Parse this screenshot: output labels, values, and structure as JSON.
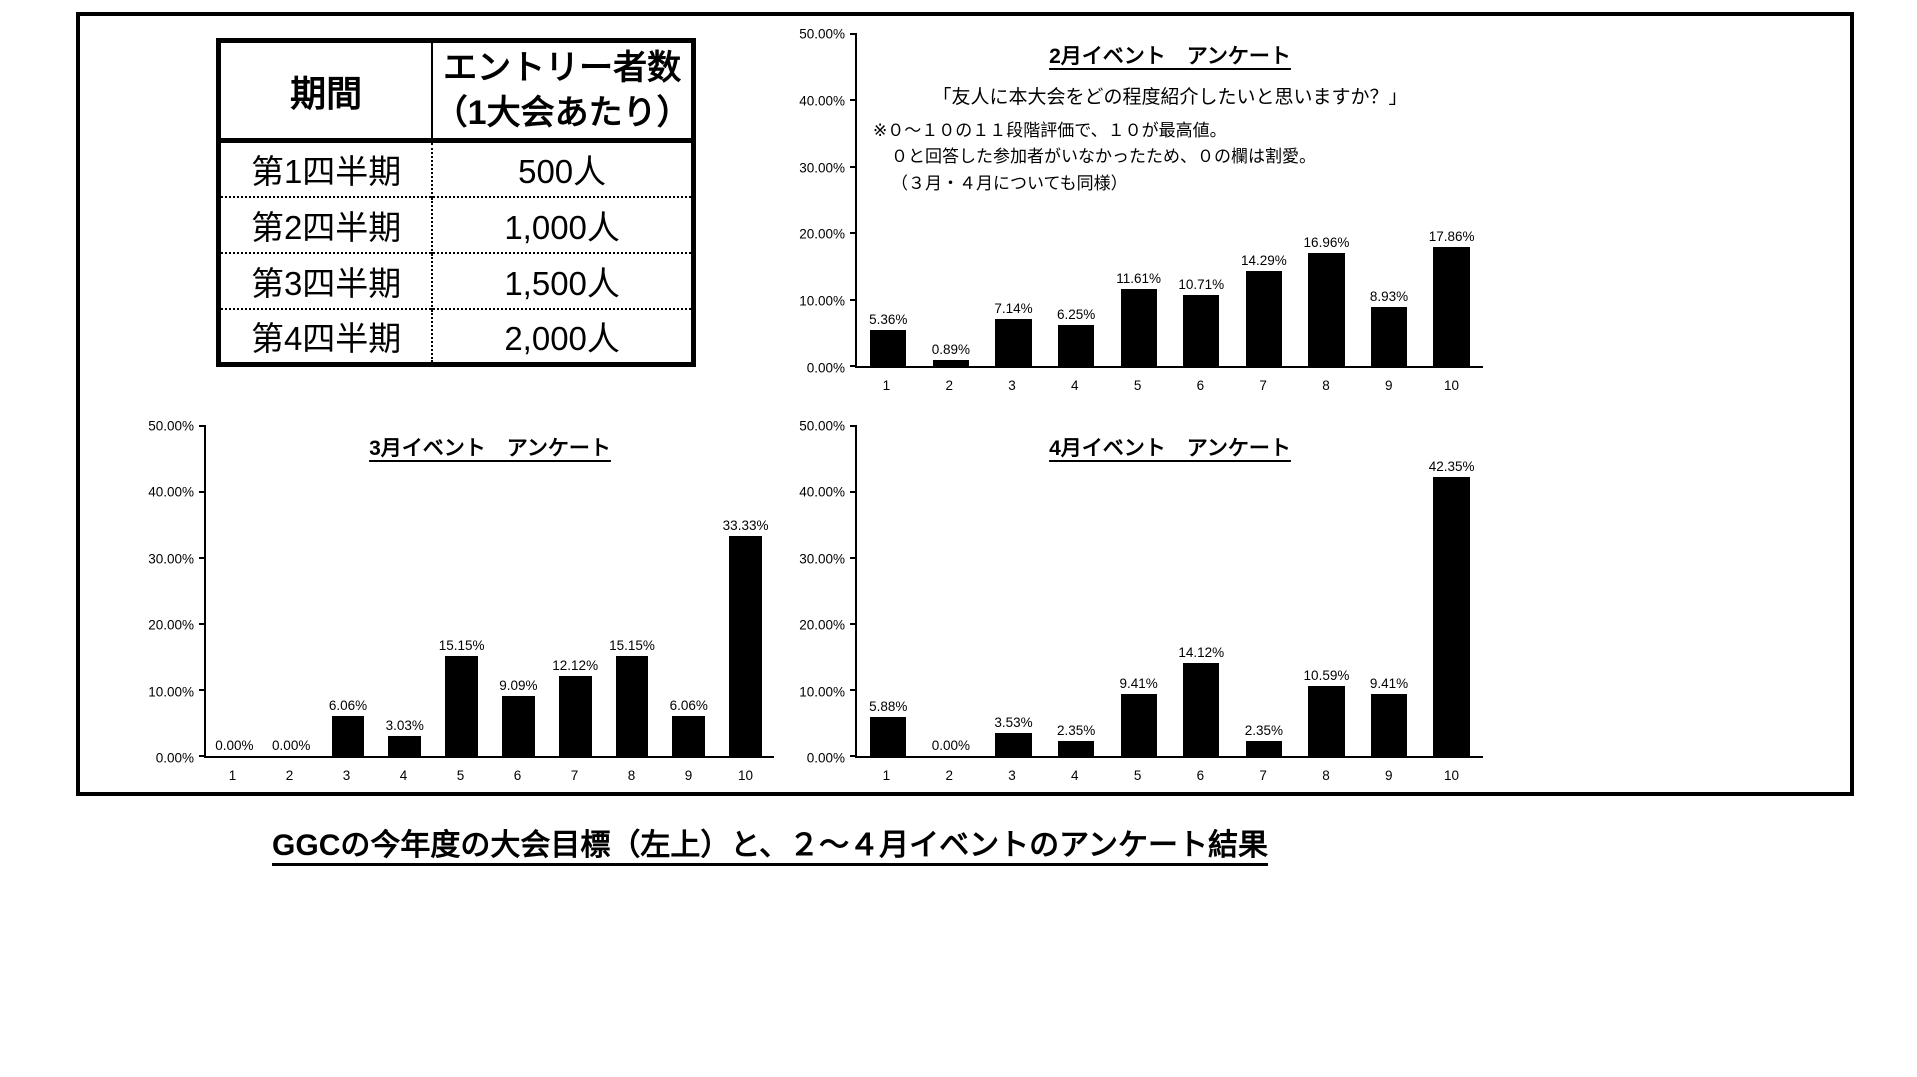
{
  "caption": "GGCの今年度の大会目標（左上）と、２～４月イベントのアンケート結果",
  "table": {
    "headers": [
      "期間",
      "エントリー者数\n（1大会あたり）"
    ],
    "rows": [
      [
        "第1四半期",
        "500人"
      ],
      [
        "第2四半期",
        "1,000人"
      ],
      [
        "第3四半期",
        "1,500人"
      ],
      [
        "第4四半期",
        "2,000人"
      ]
    ]
  },
  "chart_data": [
    {
      "type": "bar",
      "title": "2月イベント　アンケート",
      "question": "「友人に本大会をどの程度紹介したいと思いますか？」",
      "note_lines": [
        "※０～１０の１１段階評価で、１０が最高値。",
        "０と回答した参加者がいなかったため、０の欄は割愛。",
        "（３月・４月についても同様）"
      ],
      "categories": [
        "1",
        "2",
        "3",
        "4",
        "5",
        "6",
        "7",
        "8",
        "9",
        "10"
      ],
      "values": [
        5.36,
        0.89,
        7.14,
        6.25,
        11.61,
        10.71,
        14.29,
        16.96,
        8.93,
        17.86
      ],
      "xlabel": "",
      "ylabel": "",
      "ylim": [
        0,
        50
      ],
      "yticks": [
        "0.00%",
        "10.00%",
        "20.00%",
        "30.00%",
        "40.00%",
        "50.00%"
      ],
      "grid": false,
      "legend": false,
      "bar_color": "#000000"
    },
    {
      "type": "bar",
      "title": "3月イベント　アンケート",
      "categories": [
        "1",
        "2",
        "3",
        "4",
        "5",
        "6",
        "7",
        "8",
        "9",
        "10"
      ],
      "values": [
        0.0,
        0.0,
        6.06,
        3.03,
        15.15,
        9.09,
        12.12,
        15.15,
        6.06,
        33.33
      ],
      "xlabel": "",
      "ylabel": "",
      "ylim": [
        0,
        50
      ],
      "yticks": [
        "0.00%",
        "10.00%",
        "20.00%",
        "30.00%",
        "40.00%",
        "50.00%"
      ],
      "grid": false,
      "legend": false,
      "bar_color": "#000000"
    },
    {
      "type": "bar",
      "title": "4月イベント　アンケート",
      "categories": [
        "1",
        "2",
        "3",
        "4",
        "5",
        "6",
        "7",
        "8",
        "9",
        "10"
      ],
      "values": [
        5.88,
        0.0,
        3.53,
        2.35,
        9.41,
        14.12,
        2.35,
        10.59,
        9.41,
        42.35
      ],
      "xlabel": "",
      "ylabel": "",
      "ylim": [
        0,
        50
      ],
      "yticks": [
        "0.00%",
        "10.00%",
        "20.00%",
        "30.00%",
        "40.00%",
        "50.00%"
      ],
      "grid": false,
      "legend": false,
      "bar_color": "#000000"
    }
  ]
}
